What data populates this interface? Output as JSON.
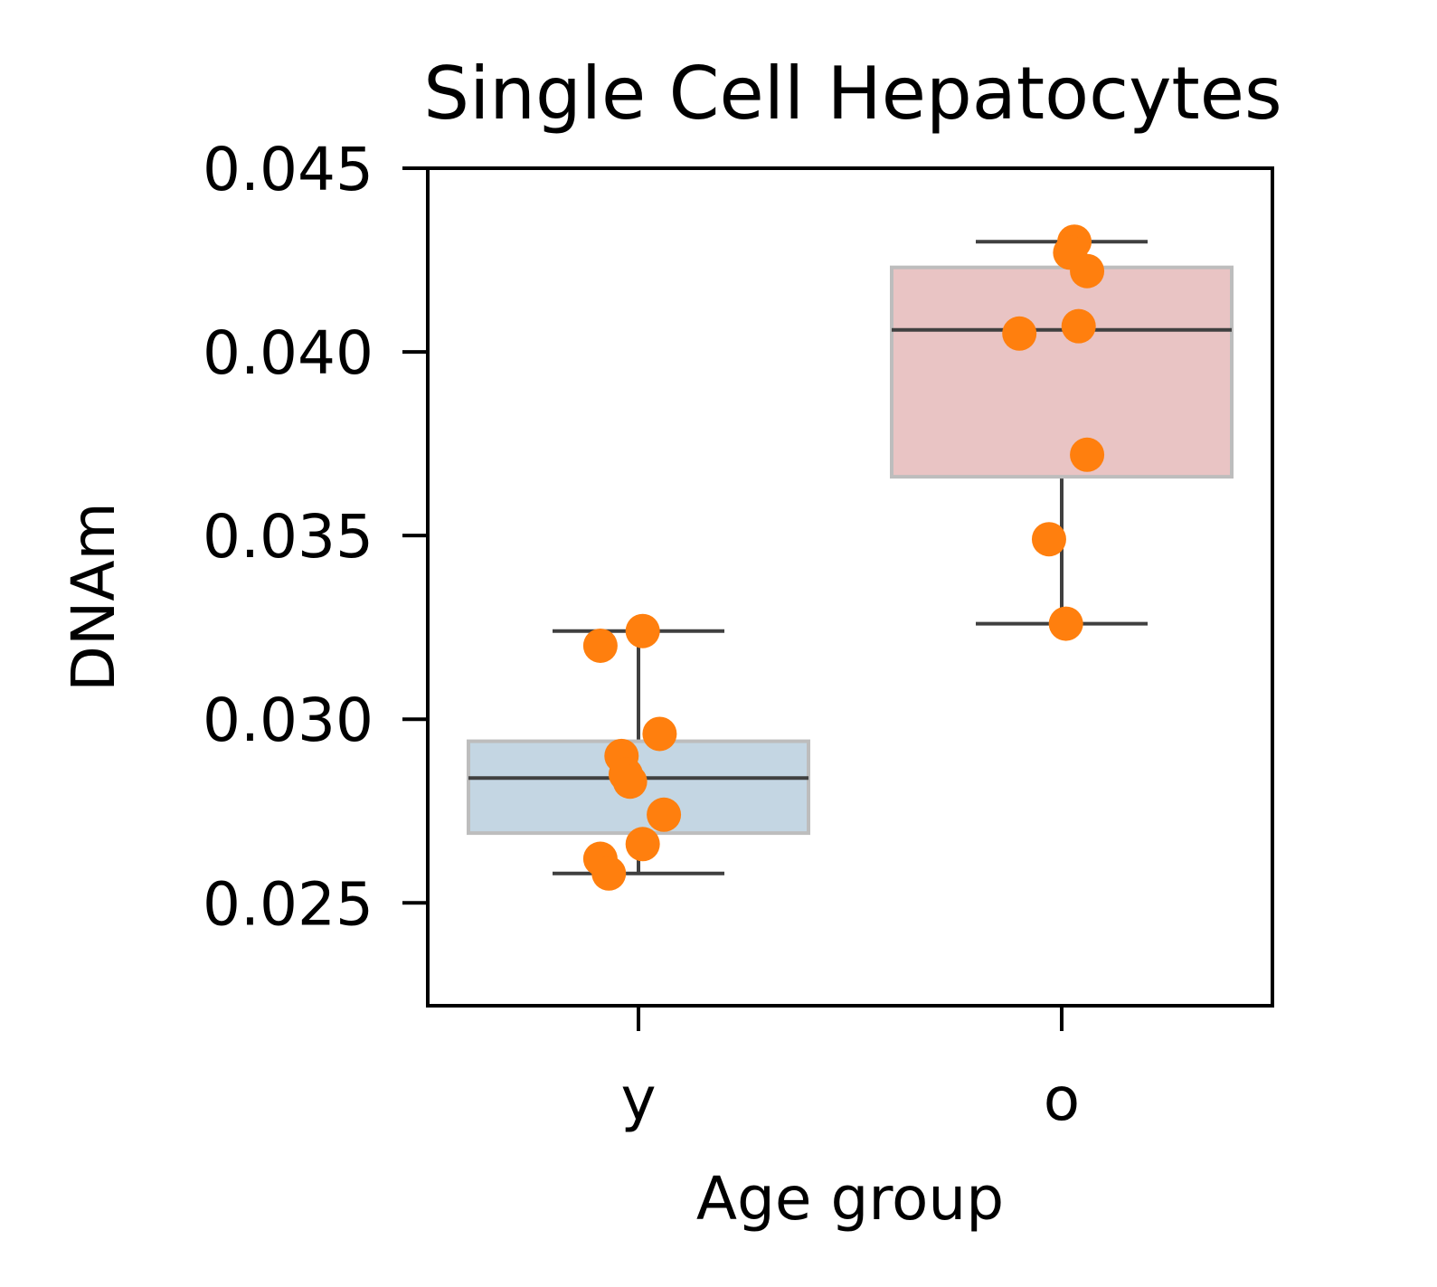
{
  "chart_data": {
    "type": "box",
    "title": "Single Cell Hepatocytes",
    "xlabel": "Age group",
    "ylabel": "DNAm",
    "ylim": [
      0.0222,
      0.045
    ],
    "yticks": [
      0.025,
      0.03,
      0.035,
      0.04,
      0.045
    ],
    "ytick_labels": [
      "0.025",
      "0.030",
      "0.035",
      "0.040",
      "0.045"
    ],
    "categories": [
      "y",
      "o"
    ],
    "grid": false,
    "colors": {
      "y": "#c4d6e3",
      "o": "#e9c4c4",
      "points": "#ff7f0e",
      "lines": "#404040",
      "box_edge": "#bdbdbd"
    },
    "boxes": [
      {
        "category": "y",
        "whisker_low": 0.0258,
        "q1": 0.0269,
        "median": 0.0284,
        "q3": 0.0294,
        "whisker_high": 0.0324
      },
      {
        "category": "o",
        "whisker_low": 0.0326,
        "q1": 0.0366,
        "median": 0.0406,
        "q3": 0.0423,
        "whisker_high": 0.043
      }
    ],
    "points": [
      {
        "category": "y",
        "values": [
          0.032,
          0.0324,
          0.0296,
          0.029,
          0.0285,
          0.0283,
          0.0274,
          0.0266,
          0.0262,
          0.0258
        ],
        "jitter": [
          -0.09,
          0.01,
          0.05,
          -0.04,
          -0.03,
          -0.02,
          0.06,
          0.01,
          -0.09,
          -0.07
        ]
      },
      {
        "category": "o",
        "values": [
          0.043,
          0.0427,
          0.0422,
          0.0407,
          0.0405,
          0.0372,
          0.0349,
          0.0326
        ],
        "jitter": [
          0.03,
          0.02,
          0.06,
          0.04,
          -0.1,
          0.06,
          -0.03,
          0.01
        ]
      }
    ]
  }
}
